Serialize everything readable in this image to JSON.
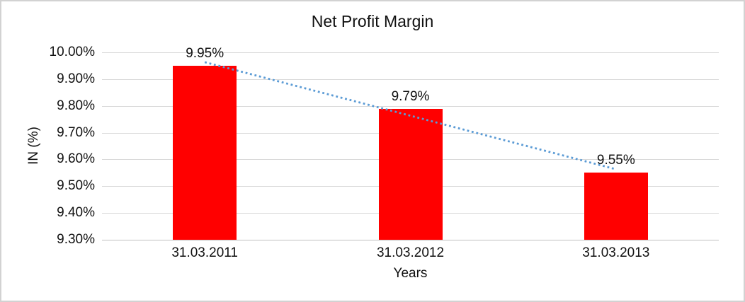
{
  "chart_data": {
    "type": "bar",
    "title": "Net Profit Margin",
    "xlabel": "Years",
    "ylabel": "IN (%)",
    "categories": [
      "31.03.2011",
      "31.03.2012",
      "31.03.2013"
    ],
    "values": [
      9.95,
      9.79,
      9.55
    ],
    "data_labels": [
      "9.95%",
      "9.79%",
      "9.55%"
    ],
    "ylim": [
      9.3,
      10.0
    ],
    "ytick_step": 0.1,
    "yticks": [
      {
        "value": 10.0,
        "label": "10.00%"
      },
      {
        "value": 9.9,
        "label": "9.90%"
      },
      {
        "value": 9.8,
        "label": "9.80%"
      },
      {
        "value": 9.7,
        "label": "9.70%"
      },
      {
        "value": 9.6,
        "label": "9.60%"
      },
      {
        "value": 9.5,
        "label": "9.50%"
      },
      {
        "value": 9.4,
        "label": "9.40%"
      },
      {
        "value": 9.3,
        "label": "9.30%"
      }
    ],
    "grid": true,
    "legend": "none",
    "bar_color": "#FF0000",
    "gridline_color": "#D9D9D9",
    "axis_line_color": "#BFBFBF",
    "text_color": "#111111",
    "trendline": {
      "present": true,
      "fit": "linear",
      "style": "dotted",
      "color": "#5B9BD5"
    }
  }
}
